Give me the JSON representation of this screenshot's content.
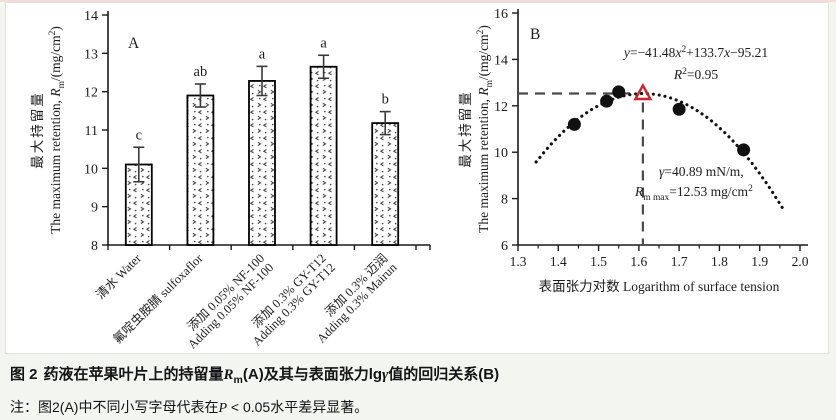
{
  "page": {
    "panel_bg": "#ffffff",
    "outer_bg": "#f3f5f1",
    "axis_color": "#1a1a1a",
    "error_bar_color": "#3a3a3a",
    "pattern_mark_color": "#4a4a4a"
  },
  "chart_data": [
    {
      "id": "A",
      "type": "bar",
      "panel_label": "A",
      "ylabel_cn": "最大持留量",
      "ylabel_en_segments": [
        {
          "t": "The maximum retention, "
        },
        {
          "t": "R",
          "i": true
        },
        {
          "t": "m",
          "sub": true
        },
        {
          "t": "/(mg/cm"
        },
        {
          "t": "2",
          "sup": true
        },
        {
          "t": ")"
        }
      ],
      "ylim": [
        8,
        14
      ],
      "ytick_labels": [
        "8",
        "9",
        "10",
        "11",
        "12",
        "13",
        "14"
      ],
      "ytick_values": [
        8,
        9,
        10,
        11,
        12,
        13,
        14
      ],
      "categories": [
        {
          "lines": [
            "清水 Water"
          ]
        },
        {
          "lines": [
            "氟啶虫胺腈 sulfoxaflor"
          ]
        },
        {
          "lines": [
            "添加 0.05% NF-100",
            "Adding 0.05% NF-100"
          ]
        },
        {
          "lines": [
            "添加 0.3% GY-T12",
            "Adding 0.3% GY-T12"
          ]
        },
        {
          "lines": [
            "添加 0.3% 迈润",
            "Adding 0.3% Mairun"
          ]
        }
      ],
      "values": [
        10.1,
        11.9,
        12.28,
        12.65,
        11.18
      ],
      "errors": [
        0.45,
        0.3,
        0.38,
        0.3,
        0.3
      ],
      "sig_letters": [
        "c",
        "ab",
        "a",
        "a",
        "b"
      ]
    },
    {
      "id": "B",
      "type": "scatter",
      "panel_label": "B",
      "ylabel_cn": "最大持留量",
      "ylabel_en_segments": [
        {
          "t": "The maximum retention, "
        },
        {
          "t": "R",
          "i": true
        },
        {
          "t": "m",
          "sub": true
        },
        {
          "t": "/(mg/cm"
        },
        {
          "t": "2",
          "sup": true
        },
        {
          "t": ")"
        }
      ],
      "xlabel": "表面张力对数 Logarithm of surface tension",
      "xlim": [
        1.3,
        2.0
      ],
      "ylim": [
        6,
        16
      ],
      "xtick_labels": [
        "1.3",
        "1.4",
        "1.5",
        "1.6",
        "1.7",
        "1.8",
        "1.9",
        "2.0"
      ],
      "xtick_values": [
        1.3,
        1.4,
        1.5,
        1.6,
        1.7,
        1.8,
        1.9,
        2.0
      ],
      "xminor_step": 0.05,
      "ytick_labels": [
        "6",
        "8",
        "10",
        "12",
        "14",
        "16"
      ],
      "ytick_values": [
        6,
        8,
        10,
        12,
        14,
        16
      ],
      "points": [
        [
          1.44,
          11.2
        ],
        [
          1.52,
          12.2
        ],
        [
          1.55,
          12.6
        ],
        [
          1.7,
          11.85
        ],
        [
          1.86,
          10.1
        ]
      ],
      "fit": {
        "a": -41.48,
        "b": 133.7,
        "c": -95.21,
        "x_range": [
          1.345,
          1.96
        ]
      },
      "equation_line1_segments": [
        {
          "t": "y",
          "i": true
        },
        {
          "t": "=−41.48"
        },
        {
          "t": "x",
          "i": true
        },
        {
          "t": "2",
          "sup": true
        },
        {
          "t": "+133.7"
        },
        {
          "t": "x",
          "i": true
        },
        {
          "t": "−95.21"
        }
      ],
      "equation_line2_segments": [
        {
          "t": "R",
          "i": true
        },
        {
          "t": "2",
          "sup": true
        },
        {
          "t": "=0.95"
        }
      ],
      "r_squared": 0.95,
      "peak": {
        "x": 1.61,
        "y": 12.53
      },
      "annotation_line1_segments": [
        {
          "t": "γ",
          "i": true
        },
        {
          "t": "=40.89 mN/m,"
        }
      ],
      "annotation_line2_segments": [
        {
          "t": "R",
          "i": true
        },
        {
          "t": "m max",
          "sub": true
        },
        {
          "t": "=12.53 mg/cm"
        },
        {
          "t": "2",
          "sup": true
        }
      ],
      "marker_color": "#111111",
      "peak_marker_color": "#c9252d",
      "dash_color": "#4a4a4a"
    }
  ],
  "caption": {
    "line1_segments": [
      {
        "t": "图 2",
        "b": true
      },
      {
        "t": "药液在苹果叶片上的持留量"
      },
      {
        "t": "R",
        "i": true
      },
      {
        "t": "m",
        "sub": true
      },
      {
        "t": "(A)及其与表面张力lg"
      },
      {
        "t": "γ",
        "i": true
      },
      {
        "t": "值的回归关系(B)"
      }
    ],
    "line2_segments": [
      {
        "t": "注：图2(A)中不同小写字母代表在"
      },
      {
        "t": "P",
        "i": true
      },
      {
        "t": " < 0.05水平差异显著。"
      }
    ]
  }
}
